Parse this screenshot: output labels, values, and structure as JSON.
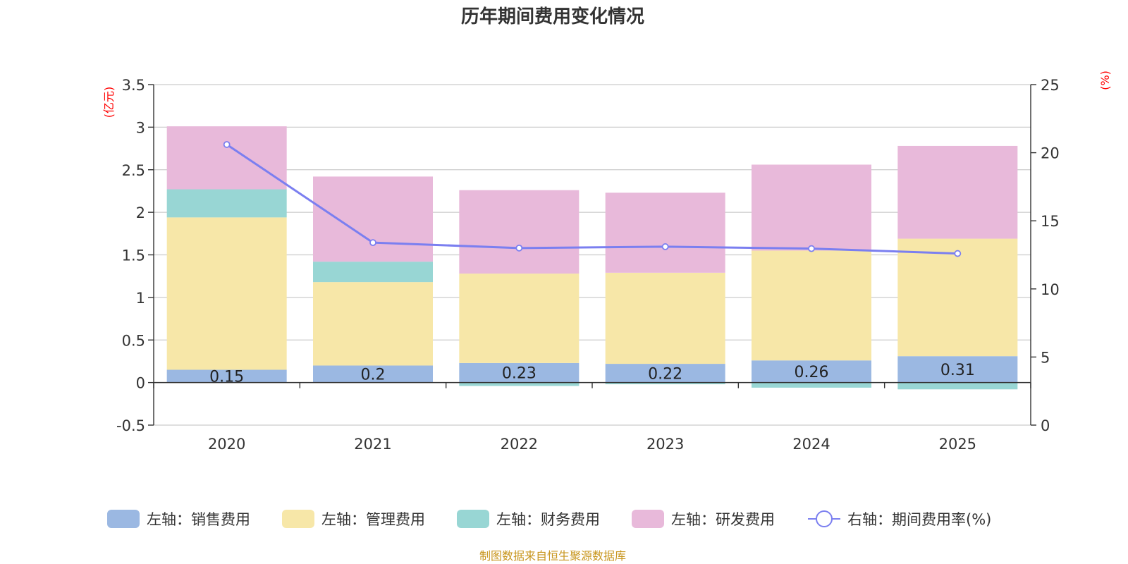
{
  "chart_data": {
    "type": "bar",
    "stacked": true,
    "title": "历年期间费用变化情况",
    "categories": [
      "2020",
      "2021",
      "2022",
      "2023",
      "2024",
      "2025"
    ],
    "left_axis": {
      "unit": "(亿元)",
      "ylim": [
        -0.5,
        3.5
      ],
      "ticks": [
        "-0.5",
        "0",
        "0.5",
        "1",
        "1.5",
        "2",
        "2.5",
        "3",
        "3.5"
      ]
    },
    "right_axis": {
      "unit": "(%)",
      "ylim": [
        0,
        25
      ],
      "ticks": [
        "0",
        "5",
        "10",
        "15",
        "20",
        "25"
      ]
    },
    "series": [
      {
        "name": "左轴：销售费用",
        "color": "#9bb8e2",
        "axis": "left",
        "type": "bar",
        "values": [
          0.15,
          0.2,
          0.23,
          0.22,
          0.26,
          0.31
        ],
        "labels": [
          "0.15",
          "0.2",
          "0.23",
          "0.22",
          "0.26",
          "0.31"
        ]
      },
      {
        "name": "左轴：管理费用",
        "color": "#f7e7a8",
        "axis": "left",
        "type": "bar",
        "values": [
          1.79,
          0.98,
          1.05,
          1.07,
          1.29,
          1.38
        ]
      },
      {
        "name": "左轴：财务费用",
        "color": "#98d6d4",
        "axis": "left",
        "type": "bar",
        "values": [
          0.33,
          0.24,
          -0.04,
          -0.02,
          -0.06,
          -0.08
        ]
      },
      {
        "name": "左轴：研发费用",
        "color": "#e8b9da",
        "axis": "left",
        "type": "bar",
        "values": [
          0.74,
          1.0,
          0.98,
          0.94,
          1.01,
          1.09
        ]
      },
      {
        "name": "右轴：期间费用率(%)",
        "color": "#7b7ff0",
        "axis": "right",
        "type": "line",
        "values": [
          20.6,
          13.4,
          13.0,
          13.1,
          12.96,
          12.6
        ]
      }
    ],
    "legend_position": "bottom",
    "grid": true
  },
  "source_note": "制图数据来自恒生聚源数据库"
}
